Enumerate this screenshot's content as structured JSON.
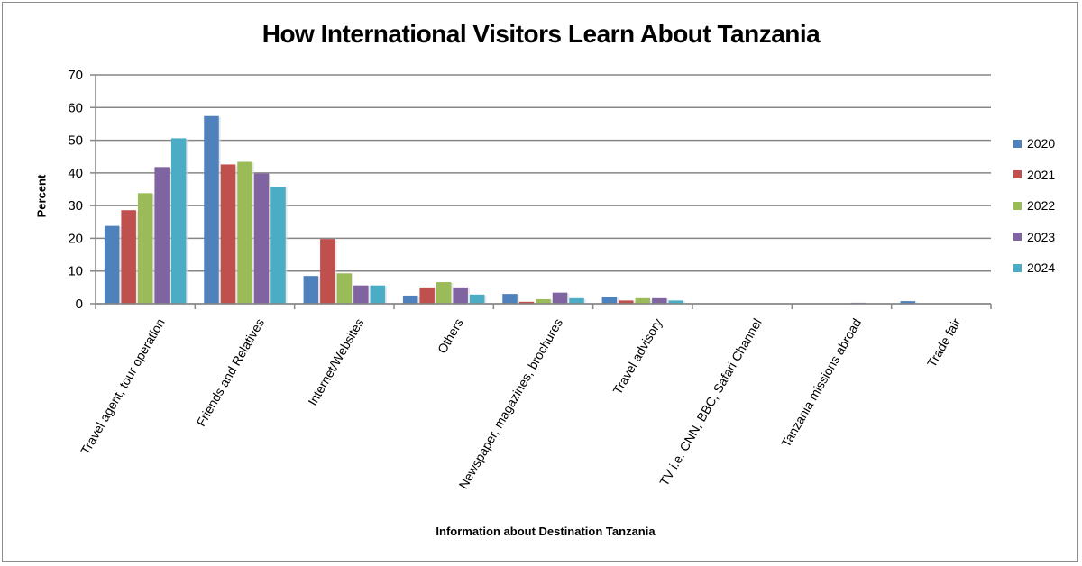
{
  "chart_data": {
    "type": "bar",
    "title": "How International Visitors Learn About Tanzania",
    "xlabel": "Information about  Destination Tanzania",
    "ylabel": "Percent",
    "ylim": [
      0,
      70
    ],
    "yticks": [
      0,
      10,
      20,
      30,
      40,
      50,
      60,
      70
    ],
    "grid": true,
    "legend_position": "right",
    "categories": [
      "Travel agent, tour operation",
      "Friends and Relatives",
      "Internet/Websites",
      "Others",
      "Newspaper, magazines, brochures",
      "Travel advisory",
      "TV i.e. CNN, BBC, Safari Channel",
      "Tanzania missions abroad",
      "Trade fair"
    ],
    "series": [
      {
        "name": "2020",
        "color": "#4f81bd",
        "values": [
          23.8,
          57.4,
          8.5,
          2.5,
          3.0,
          2.1,
          0,
          0,
          0.8
        ]
      },
      {
        "name": "2021",
        "color": "#c0504d",
        "values": [
          28.6,
          42.6,
          19.8,
          5.0,
          0.6,
          1.0,
          0,
          0,
          0
        ]
      },
      {
        "name": "2022",
        "color": "#9bbb59",
        "values": [
          33.8,
          43.4,
          9.3,
          6.6,
          1.4,
          1.7,
          0,
          0,
          0
        ]
      },
      {
        "name": "2023",
        "color": "#8064a2",
        "values": [
          41.8,
          39.8,
          5.6,
          5.0,
          3.4,
          1.7,
          0,
          0.3,
          0
        ]
      },
      {
        "name": "2024",
        "color": "#4bacc6",
        "values": [
          50.6,
          35.8,
          5.6,
          2.8,
          1.7,
          1.0,
          0,
          0,
          0
        ]
      }
    ]
  }
}
